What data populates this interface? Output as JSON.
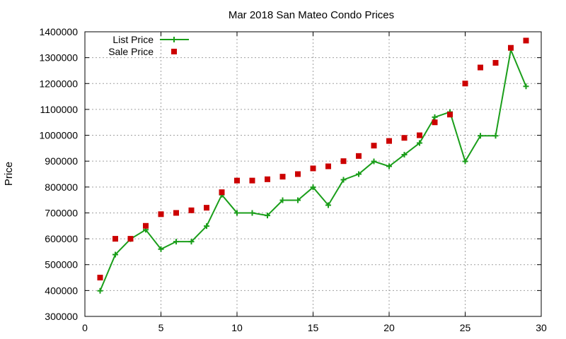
{
  "chart_data": {
    "type": "line",
    "title": "Mar 2018 San Mateo Condo Prices",
    "xlabel": "",
    "ylabel": "Price",
    "xlim": [
      0,
      30
    ],
    "ylim": [
      300000,
      1400000
    ],
    "xticks": [
      0,
      5,
      10,
      15,
      20,
      25,
      30
    ],
    "yticks": [
      300000,
      400000,
      500000,
      600000,
      700000,
      800000,
      900000,
      1000000,
      1100000,
      1200000,
      1300000,
      1400000
    ],
    "grid": true,
    "legend_position": "top-left",
    "series": [
      {
        "name": "List Price",
        "style": "line-with-plus-markers",
        "color": "#1a9e1a",
        "x": [
          1,
          2,
          3,
          4,
          5,
          6,
          7,
          8,
          9,
          10,
          11,
          12,
          13,
          14,
          15,
          16,
          17,
          18,
          19,
          20,
          21,
          22,
          23,
          24,
          25,
          26,
          27,
          28,
          29
        ],
        "values": [
          399000,
          539000,
          599000,
          635000,
          560000,
          589000,
          589000,
          649000,
          770000,
          700000,
          700000,
          690000,
          749000,
          749000,
          799000,
          730000,
          828000,
          850000,
          899000,
          880000,
          925000,
          970000,
          1070000,
          1090000,
          899000,
          998000,
          998000,
          1330000,
          1189000
        ]
      },
      {
        "name": "Sale Price",
        "style": "square-markers",
        "color": "#cc0000",
        "x": [
          1,
          2,
          3,
          4,
          5,
          6,
          7,
          8,
          9,
          10,
          11,
          12,
          13,
          14,
          15,
          16,
          17,
          18,
          19,
          20,
          21,
          22,
          23,
          24,
          25,
          26,
          27,
          28,
          29
        ],
        "values": [
          450000,
          600000,
          600000,
          650000,
          695000,
          700000,
          710000,
          720000,
          780000,
          825000,
          825000,
          830000,
          840000,
          850000,
          872000,
          880000,
          900000,
          920000,
          960000,
          978000,
          990000,
          1000000,
          1050000,
          1080000,
          1200000,
          1262000,
          1280000,
          1338000,
          1366000
        ]
      }
    ]
  }
}
